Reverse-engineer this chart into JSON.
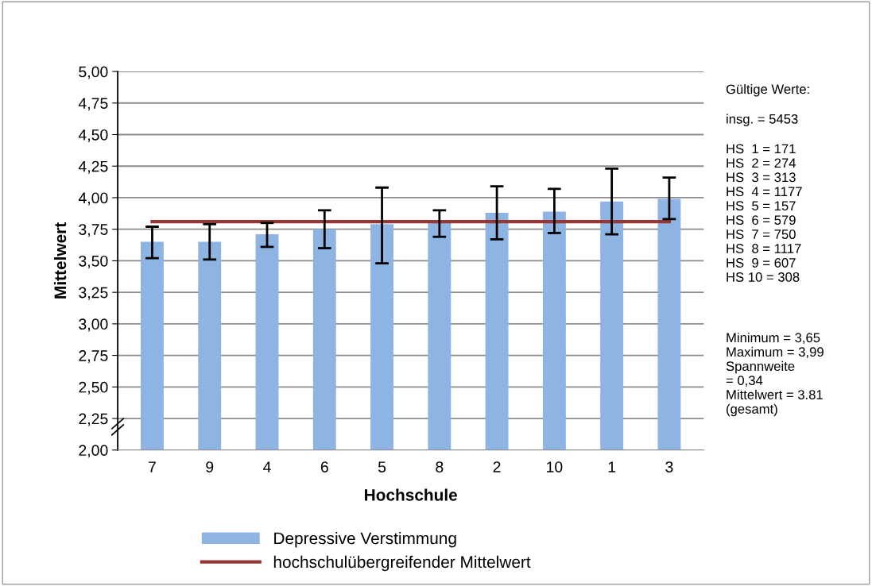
{
  "chart_data": {
    "type": "bar",
    "xlabel": "Hochschule",
    "ylabel": "Mittelwert",
    "categories": [
      "7",
      "9",
      "4",
      "6",
      "5",
      "8",
      "2",
      "10",
      "1",
      "3"
    ],
    "series": [
      {
        "name": "Depressive Verstimmung",
        "color": "#8eb4e3",
        "values": [
          3.65,
          3.65,
          3.71,
          3.75,
          3.79,
          3.8,
          3.88,
          3.89,
          3.97,
          3.99
        ],
        "errors": [
          [
            3.52,
            3.77
          ],
          [
            3.51,
            3.79
          ],
          [
            3.61,
            3.8
          ],
          [
            3.6,
            3.9
          ],
          [
            3.48,
            4.08
          ],
          [
            3.69,
            3.9
          ],
          [
            3.67,
            4.09
          ],
          [
            3.72,
            4.07
          ],
          [
            3.71,
            4.23
          ],
          [
            3.83,
            4.16
          ]
        ]
      },
      {
        "name": "hochschulübergreifender Mittelwert",
        "type": "line",
        "color": "#953735",
        "values": [
          3.81,
          3.81,
          3.81,
          3.81,
          3.81,
          3.81,
          3.81,
          3.81,
          3.81,
          3.81
        ]
      }
    ],
    "ylim": [
      2,
      5
    ],
    "yticks": [
      {
        "value": 2,
        "label": "2,00"
      },
      {
        "value": 2.25,
        "label": "2,25"
      },
      {
        "value": 2.5,
        "label": "2,50"
      },
      {
        "value": 2.75,
        "label": "2,75"
      },
      {
        "value": 3,
        "label": "3,00"
      },
      {
        "value": 3.25,
        "label": "3,25"
      },
      {
        "value": 3.5,
        "label": "3,50"
      },
      {
        "value": 3.75,
        "label": "3,75"
      },
      {
        "value": 4,
        "label": "4,00"
      },
      {
        "value": 4.25,
        "label": "4,25"
      },
      {
        "value": 4.5,
        "label": "4,50"
      },
      {
        "value": 4.75,
        "label": "4,75"
      },
      {
        "value": 5,
        "label": "5,00"
      }
    ],
    "grid": "y",
    "legend": "bottom",
    "annotations": [
      "Gültige Werte:",
      "insg. = 5453",
      "HS  1 = 171\nHS  2 = 274\nHS  3 = 313\nHS  4 = 1177\nHS  5 = 157\nHS  6 = 579\nHS  7 = 750\nHS  8 = 1117\nHS  9 = 607\nHS 10 = 308",
      "Minimum = 3,65\nMaximum = 3,99\nSpannweite\n= 0,34\nMittelwert = 3.81\n(gesamt)"
    ]
  }
}
